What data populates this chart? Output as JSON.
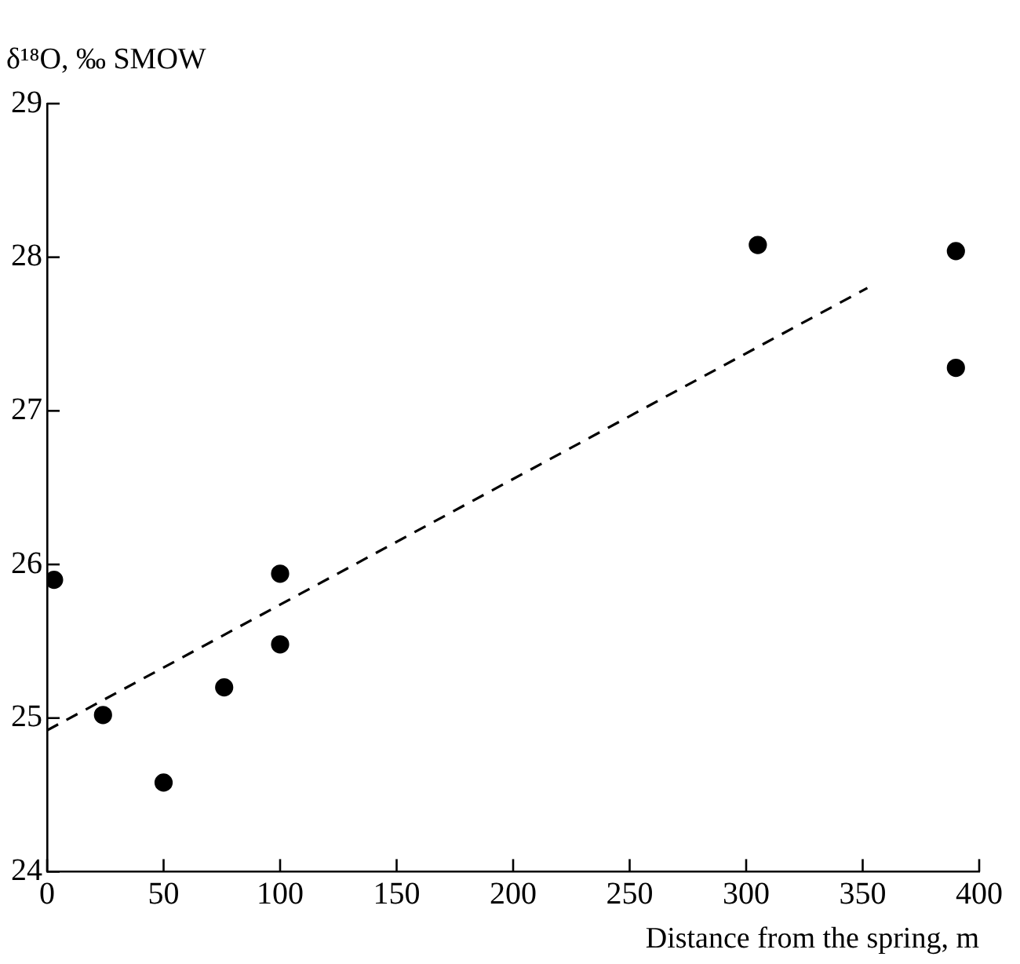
{
  "chart_data": {
    "type": "scatter",
    "xlabel": "Distance from the spring, m",
    "ylabel": "δ¹⁸O, ‰ SMOW",
    "xlim": [
      0,
      400
    ],
    "xticks": [
      0,
      50,
      100,
      150,
      200,
      250,
      300,
      350,
      400
    ],
    "ylim": [
      24,
      29
    ],
    "yticks": [
      24,
      25,
      26,
      27,
      28,
      29
    ],
    "grid": false,
    "legend": false,
    "marker": "circle",
    "series": [
      {
        "color": "#000000",
        "x": [
          3,
          24,
          50,
          76,
          100,
          100,
          305,
          390,
          390
        ],
        "values": [
          25.9,
          25.02,
          24.58,
          25.2,
          25.94,
          25.48,
          28.08,
          28.04,
          27.28
        ]
      },
      {
        "type": "line",
        "color": "#000000",
        "line_style": "dashed",
        "marker": "none",
        "x": [
          0,
          352
        ],
        "values": [
          24.92,
          27.8
        ]
      }
    ]
  }
}
